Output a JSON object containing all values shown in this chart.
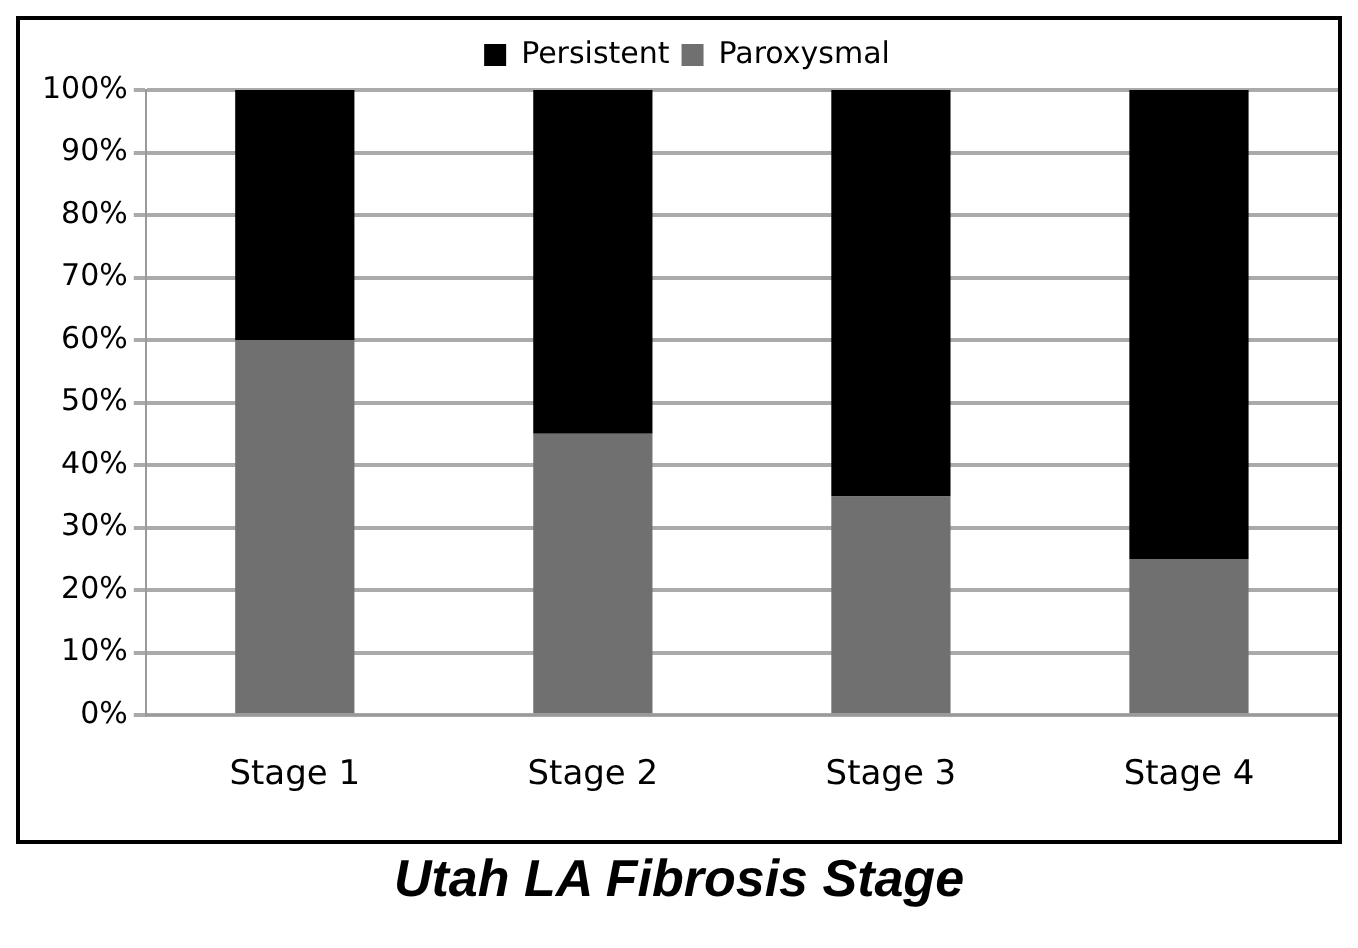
{
  "chart_data": {
    "type": "bar",
    "stacked": true,
    "xlabel": "Utah LA Fibrosis Stage",
    "categories": [
      "Stage 1",
      "Stage 2",
      "Stage 3",
      "Stage 4"
    ],
    "series": [
      {
        "name": "Paroxysmal",
        "color": "#707070",
        "values": [
          60,
          45,
          35,
          25
        ]
      },
      {
        "name": "Persistent",
        "color": "#000000",
        "values": [
          40,
          55,
          65,
          75
        ]
      }
    ],
    "ylim": [
      0,
      100
    ],
    "yticks": [
      {
        "value": 0,
        "label": "0%"
      },
      {
        "value": 10,
        "label": "10%"
      },
      {
        "value": 20,
        "label": "20%"
      },
      {
        "value": 30,
        "label": "30%"
      },
      {
        "value": 40,
        "label": "40%"
      },
      {
        "value": 50,
        "label": "50%"
      },
      {
        "value": 60,
        "label": "60%"
      },
      {
        "value": 70,
        "label": "70%"
      },
      {
        "value": 80,
        "label": "80%"
      },
      {
        "value": 90,
        "label": "90%"
      },
      {
        "value": 100,
        "label": "100%"
      }
    ],
    "grid": "y",
    "legend": "top"
  }
}
